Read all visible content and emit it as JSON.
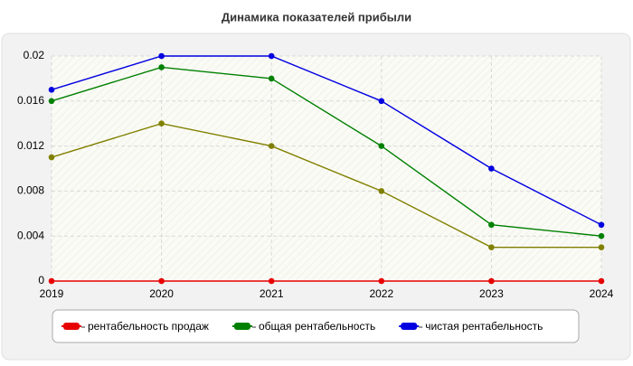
{
  "chart_data": {
    "type": "line",
    "title": "Динамика показателей прибыли",
    "categories": [
      "2019",
      "2020",
      "2021",
      "2022",
      "2023",
      "2024"
    ],
    "series": [
      {
        "name": "рентабельность продаж",
        "color": "#e60000",
        "values": [
          0,
          0,
          0,
          0,
          0,
          0
        ]
      },
      {
        "color": "#808000",
        "values": [
          0.011,
          0.014,
          0.012,
          0.008,
          0.003,
          0.003
        ]
      },
      {
        "name": "общая рентабельность",
        "color": "#008000",
        "values": [
          0.016,
          0.019,
          0.018,
          0.012,
          0.005,
          0.004
        ]
      },
      {
        "name": "чистая рентабельность",
        "color": "#0000e0",
        "values": [
          0.017,
          0.02,
          0.02,
          0.016,
          0.01,
          0.005
        ]
      }
    ],
    "ylim": [
      0,
      0.02
    ],
    "yticks": [
      0,
      0.004,
      0.008,
      0.012,
      0.016,
      0.02
    ],
    "grid": true,
    "legend": "bottom"
  }
}
